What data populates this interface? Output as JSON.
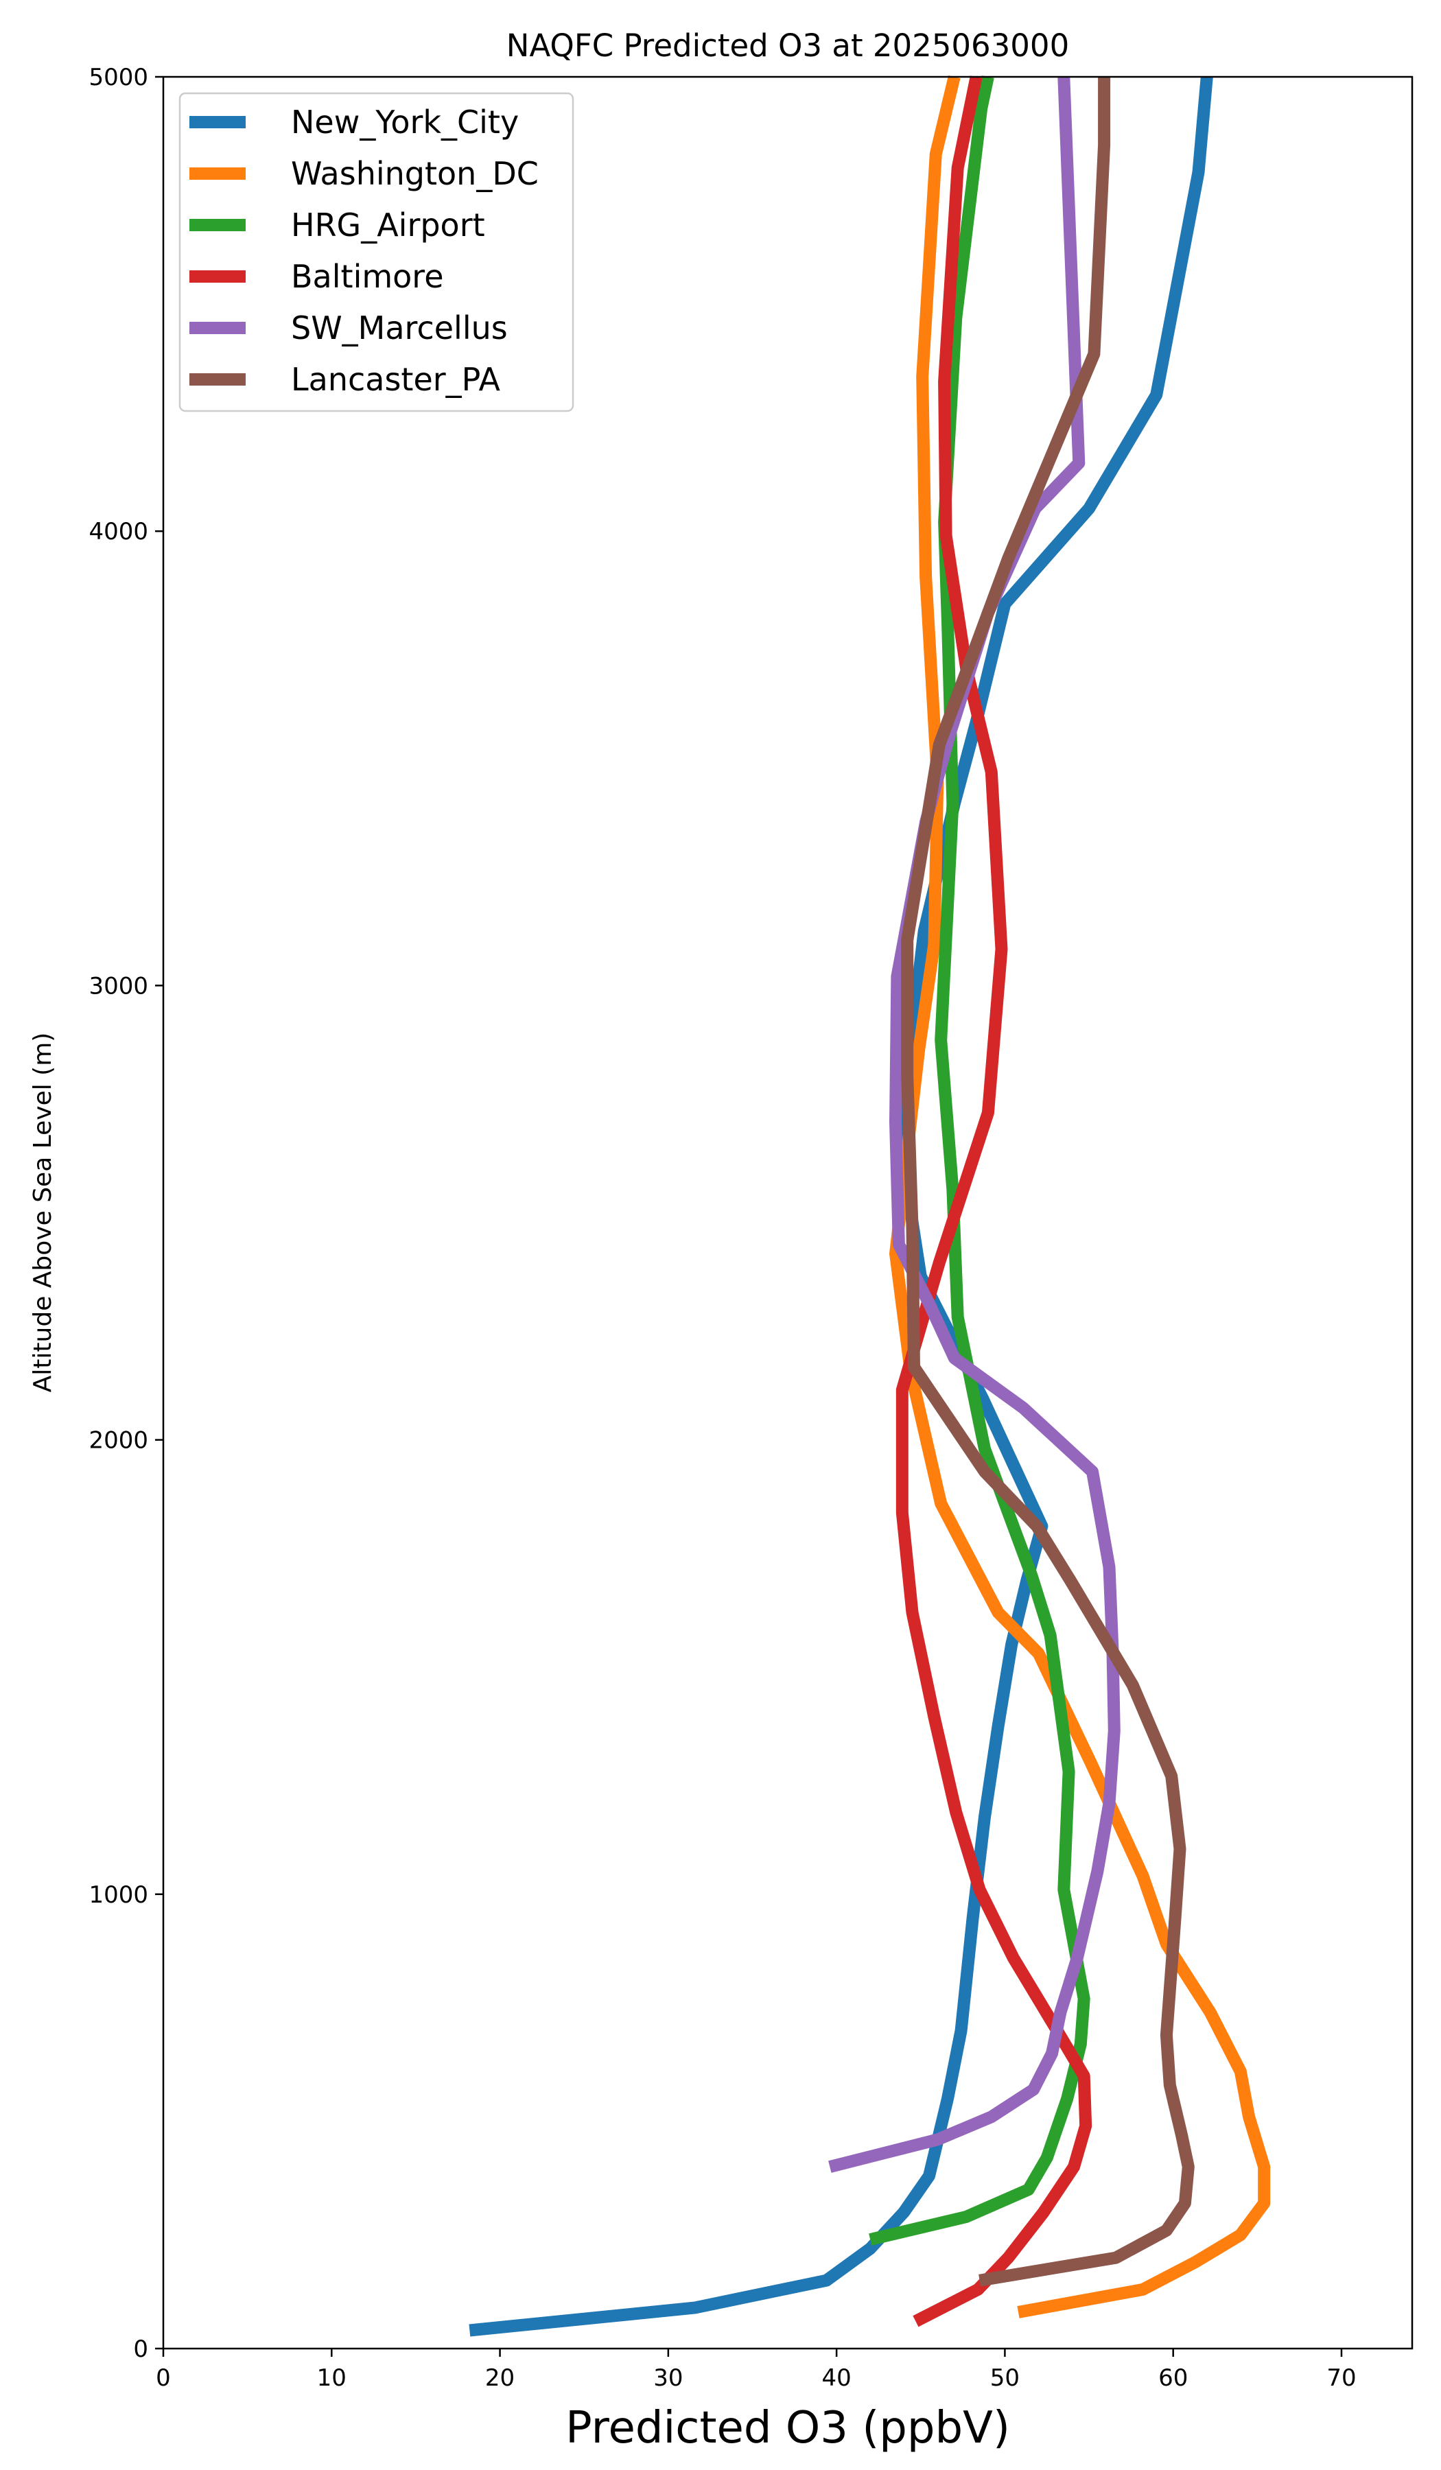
{
  "chart_data": {
    "type": "line",
    "title": "NAQFC Predicted O3 at 2025063000",
    "xlabel": "Predicted O3 (ppbV)",
    "ylabel": "Altitude Above Sea Level (m)",
    "xlim": [
      0,
      74.2
    ],
    "ylim": [
      0,
      5000
    ],
    "xticks": [
      0,
      10,
      20,
      30,
      40,
      50,
      60,
      70
    ],
    "yticks": [
      0,
      1000,
      2000,
      3000,
      4000,
      5000
    ],
    "grid": false,
    "legend_position": "upper-left",
    "series": [
      {
        "name": "New_York_City",
        "color": "#1f77b4",
        "points": [
          [
            18.2,
            40
          ],
          [
            31.6,
            90
          ],
          [
            39.4,
            150
          ],
          [
            42.0,
            220
          ],
          [
            44.0,
            300
          ],
          [
            45.5,
            380
          ],
          [
            46.6,
            550
          ],
          [
            47.4,
            700
          ],
          [
            48.1,
            950
          ],
          [
            48.8,
            1170
          ],
          [
            49.6,
            1370
          ],
          [
            50.4,
            1550
          ],
          [
            51.3,
            1690
          ],
          [
            52.2,
            1810
          ],
          [
            48.7,
            2090
          ],
          [
            45.0,
            2360
          ],
          [
            44.0,
            2600
          ],
          [
            44.4,
            2870
          ],
          [
            45.2,
            3120
          ],
          [
            47.0,
            3400
          ],
          [
            48.3,
            3580
          ],
          [
            50.0,
            3840
          ],
          [
            55.0,
            4050
          ],
          [
            59.0,
            4300
          ],
          [
            61.5,
            4790
          ],
          [
            62.0,
            5000
          ]
        ]
      },
      {
        "name": "Washington_DC",
        "color": "#ff7f0e",
        "points": [
          [
            50.8,
            80
          ],
          [
            58.2,
            130
          ],
          [
            61.3,
            190
          ],
          [
            64.0,
            250
          ],
          [
            65.4,
            320
          ],
          [
            65.4,
            400
          ],
          [
            64.5,
            510
          ],
          [
            64.0,
            610
          ],
          [
            62.2,
            740
          ],
          [
            59.6,
            890
          ],
          [
            58.2,
            1040
          ],
          [
            55.1,
            1290
          ],
          [
            52.0,
            1530
          ],
          [
            49.6,
            1620
          ],
          [
            46.2,
            1860
          ],
          [
            44.4,
            2150
          ],
          [
            43.5,
            2410
          ],
          [
            44.9,
            2860
          ],
          [
            45.8,
            3090
          ],
          [
            46.0,
            3450
          ],
          [
            45.3,
            3900
          ],
          [
            45.1,
            4340
          ],
          [
            45.9,
            4830
          ],
          [
            47.0,
            5000
          ]
        ]
      },
      {
        "name": "HRG_Airport",
        "color": "#2ca02c",
        "points": [
          [
            42.0,
            240
          ],
          [
            47.7,
            290
          ],
          [
            51.4,
            350
          ],
          [
            52.5,
            420
          ],
          [
            53.7,
            550
          ],
          [
            54.5,
            670
          ],
          [
            54.7,
            770
          ],
          [
            53.5,
            1010
          ],
          [
            53.8,
            1270
          ],
          [
            52.7,
            1570
          ],
          [
            51.6,
            1700
          ],
          [
            48.8,
            1980
          ],
          [
            47.2,
            2270
          ],
          [
            46.9,
            2550
          ],
          [
            46.2,
            2880
          ],
          [
            46.9,
            3400
          ],
          [
            46.6,
            3800
          ],
          [
            46.4,
            4020
          ],
          [
            47.1,
            4470
          ],
          [
            48.6,
            4930
          ],
          [
            49.0,
            5000
          ]
        ]
      },
      {
        "name": "Baltimore",
        "color": "#d62728",
        "points": [
          [
            44.7,
            60
          ],
          [
            48.4,
            130
          ],
          [
            50.2,
            200
          ],
          [
            52.3,
            300
          ],
          [
            54.1,
            400
          ],
          [
            54.8,
            490
          ],
          [
            54.7,
            600
          ],
          [
            53.1,
            700
          ],
          [
            50.5,
            860
          ],
          [
            48.5,
            1010
          ],
          [
            47.1,
            1180
          ],
          [
            45.8,
            1390
          ],
          [
            44.5,
            1620
          ],
          [
            43.9,
            1840
          ],
          [
            43.9,
            2110
          ],
          [
            46.1,
            2390
          ],
          [
            49.0,
            2720
          ],
          [
            49.8,
            3080
          ],
          [
            49.2,
            3470
          ],
          [
            47.7,
            3700
          ],
          [
            46.5,
            3990
          ],
          [
            46.4,
            4330
          ],
          [
            47.2,
            4800
          ],
          [
            48.3,
            5000
          ]
        ]
      },
      {
        "name": "SW_Marcellus",
        "color": "#9467bd",
        "points": [
          [
            39.6,
            400
          ],
          [
            46.0,
            460
          ],
          [
            49.2,
            510
          ],
          [
            51.7,
            570
          ],
          [
            52.8,
            650
          ],
          [
            53.3,
            740
          ],
          [
            54.3,
            860
          ],
          [
            55.5,
            1050
          ],
          [
            56.2,
            1200
          ],
          [
            56.5,
            1360
          ],
          [
            56.4,
            1540
          ],
          [
            56.2,
            1720
          ],
          [
            55.2,
            1930
          ],
          [
            51.1,
            2070
          ],
          [
            47.0,
            2180
          ],
          [
            45.5,
            2300
          ],
          [
            43.7,
            2430
          ],
          [
            43.5,
            2700
          ],
          [
            43.6,
            3020
          ],
          [
            45.3,
            3360
          ],
          [
            46.7,
            3550
          ],
          [
            49.0,
            3820
          ],
          [
            51.8,
            4050
          ],
          [
            54.4,
            4150
          ],
          [
            53.9,
            4620
          ],
          [
            53.5,
            5000
          ]
        ]
      },
      {
        "name": "Lancaster_PA",
        "color": "#8c564b",
        "points": [
          [
            48.5,
            150
          ],
          [
            56.6,
            200
          ],
          [
            59.6,
            260
          ],
          [
            60.7,
            320
          ],
          [
            60.9,
            400
          ],
          [
            60.5,
            470
          ],
          [
            59.8,
            580
          ],
          [
            59.6,
            690
          ],
          [
            60.1,
            940
          ],
          [
            60.4,
            1100
          ],
          [
            59.9,
            1260
          ],
          [
            57.6,
            1460
          ],
          [
            53.9,
            1690
          ],
          [
            51.9,
            1810
          ],
          [
            48.8,
            1930
          ],
          [
            44.6,
            2160
          ],
          [
            44.5,
            2470
          ],
          [
            44.2,
            2800
          ],
          [
            44.2,
            3100
          ],
          [
            46.1,
            3530
          ],
          [
            50.2,
            3940
          ],
          [
            55.3,
            4390
          ],
          [
            55.9,
            4850
          ],
          [
            55.9,
            5000
          ]
        ]
      }
    ]
  }
}
